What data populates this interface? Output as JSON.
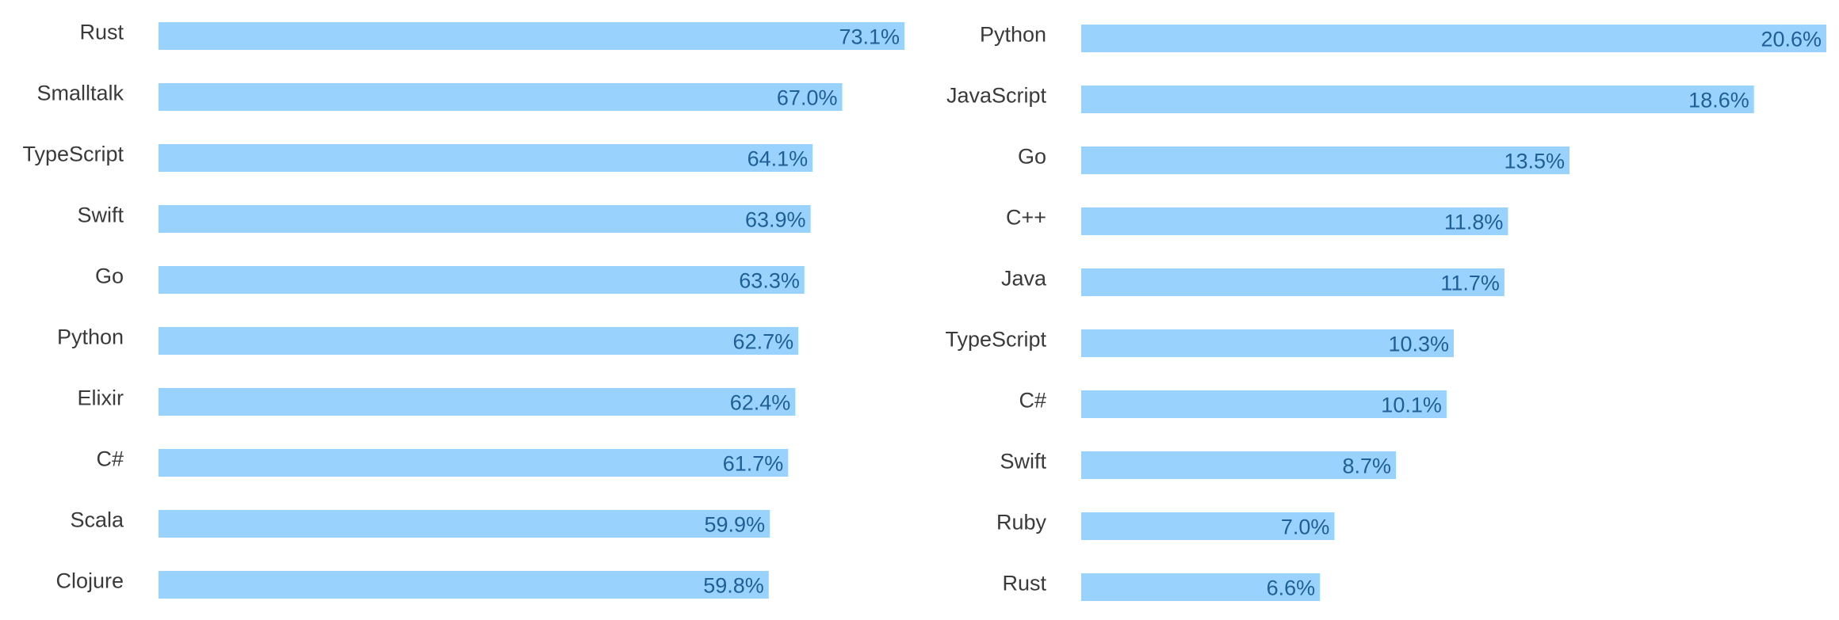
{
  "colors": {
    "bar": "#99d2fd",
    "category_text": "#3a3a3a",
    "value_text": "#1f5f96"
  },
  "chart_data": [
    {
      "type": "bar",
      "orientation": "horizontal",
      "categories": [
        "Rust",
        "Smalltalk",
        "TypeScript",
        "Swift",
        "Go",
        "Python",
        "Elixir",
        "C#",
        "Scala",
        "Clojure"
      ],
      "values": [
        73.1,
        67.0,
        64.1,
        63.9,
        63.3,
        62.7,
        62.4,
        61.7,
        59.9,
        59.8
      ],
      "value_labels": [
        "73.1%",
        "67.0%",
        "64.1%",
        "63.9%",
        "63.3%",
        "62.7%",
        "62.4%",
        "61.7%",
        "59.9%",
        "59.8%"
      ],
      "xlim": [
        0,
        73.1
      ],
      "grid": false,
      "axes_visible": false
    },
    {
      "type": "bar",
      "orientation": "horizontal",
      "categories": [
        "Python",
        "JavaScript",
        "Go",
        "C++",
        "Java",
        "TypeScript",
        "C#",
        "Swift",
        "Ruby",
        "Rust"
      ],
      "values": [
        20.6,
        18.6,
        13.5,
        11.8,
        11.7,
        10.3,
        10.1,
        8.7,
        7.0,
        6.6
      ],
      "value_labels": [
        "20.6%",
        "18.6%",
        "13.5%",
        "11.8%",
        "11.7%",
        "10.3%",
        "10.1%",
        "8.7%",
        "7.0%",
        "6.6%"
      ],
      "xlim": [
        0,
        20.6
      ],
      "grid": false,
      "axes_visible": false
    }
  ]
}
